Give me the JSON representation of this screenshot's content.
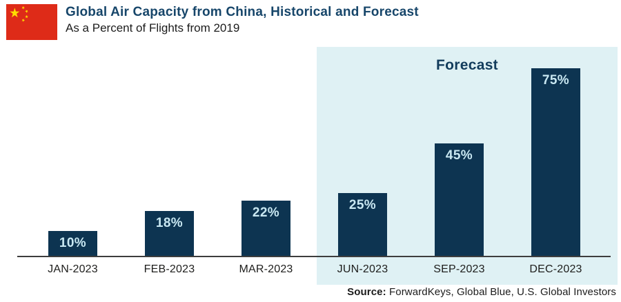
{
  "header": {
    "title": "Global Air Capacity from China, Historical and Forecast",
    "subtitle": "As a Percent of Flights from 2019"
  },
  "colors": {
    "flag_red": "#de2b18",
    "flag_yellow": "#ffde00",
    "bar": "#0d3451",
    "bar_label": "#c9e8f2",
    "forecast_bg": "#dff1f4",
    "title_navy": "#17466a",
    "forecast_text": "#123c5c",
    "axis_line": "#3d3d3d",
    "x_label": "#1d1d1b"
  },
  "chart_data": {
    "type": "bar",
    "title": "Global Air Capacity from China, Historical and Forecast",
    "subtitle": "As a Percent of Flights from 2019",
    "categories": [
      "JAN-2023",
      "FEB-2023",
      "MAR-2023",
      "JUN-2023",
      "SEP-2023",
      "DEC-2023"
    ],
    "values": [
      10,
      18,
      22,
      25,
      45,
      75
    ],
    "value_labels": [
      "10%",
      "18%",
      "22%",
      "25%",
      "45%",
      "75%"
    ],
    "unit": "percent of 2019 flights",
    "annotation": "Forecast",
    "forecast_categories": [
      "JUN-2023",
      "SEP-2023",
      "DEC-2023"
    ],
    "y_axis_visible": false,
    "ylim": [
      0,
      80
    ],
    "legend": "none",
    "grid": false
  },
  "footer": {
    "source_label": "Source:",
    "source_rest": " ForwardKeys, Global Blue, U.S. Global Investors"
  }
}
